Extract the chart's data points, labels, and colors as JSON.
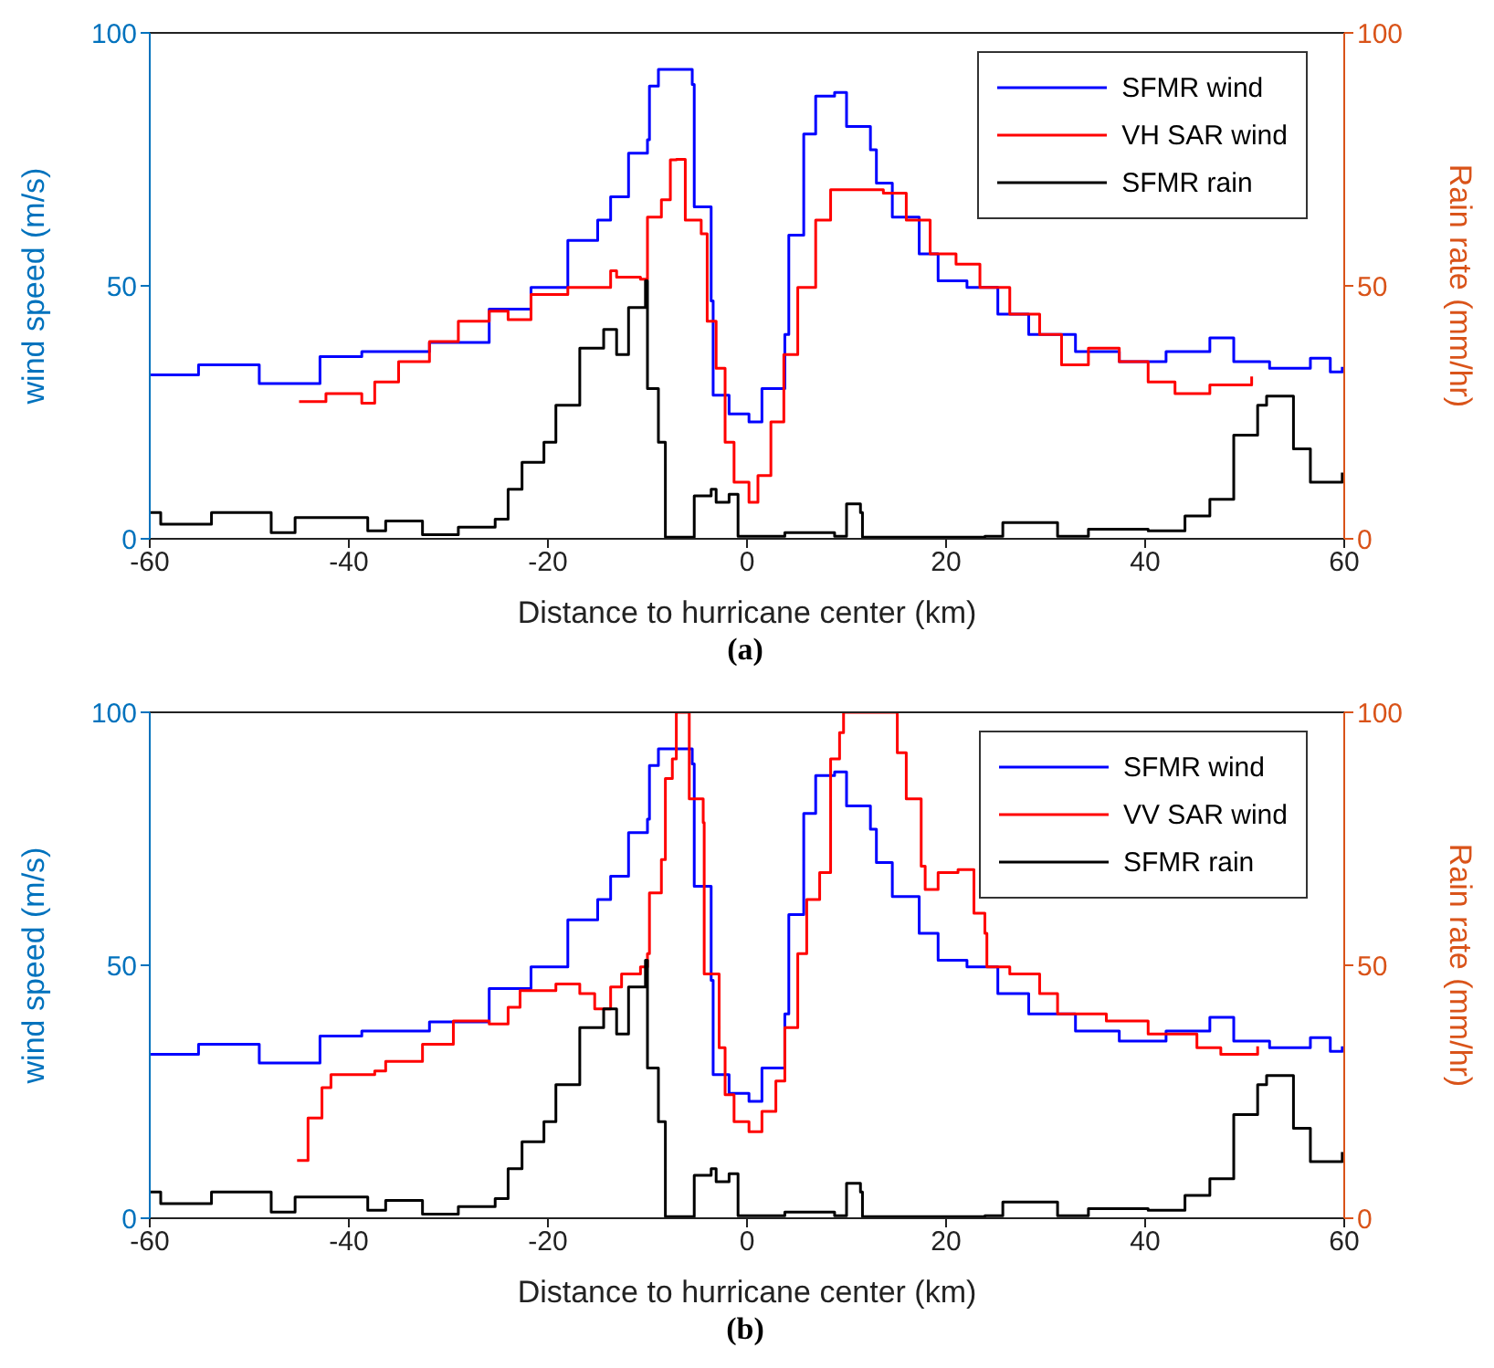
{
  "chart_data": [
    {
      "type": "step",
      "xlabel": "Distance to hurricane center (km)",
      "ylabel": "wind speed (m/s)",
      "y2label": "Rain rate (mm/hr)",
      "annotations": [
        "(a)"
      ],
      "xlim": [
        -60,
        60
      ],
      "xticks": [
        -60,
        -40,
        -20,
        0,
        20,
        40,
        60
      ],
      "ylim": [
        0,
        100
      ],
      "yticks": [
        0,
        50,
        100
      ],
      "y2lim": [
        0,
        100
      ],
      "y2ticks": [
        0,
        50,
        100
      ],
      "legend": "top right",
      "series": [
        {
          "name": "SFMR wind",
          "color": "#0000ff",
          "x": [
            -60,
            -55.1,
            -49,
            -42.9,
            -38.7,
            -31.9,
            -25.9,
            -21.7,
            -18,
            -15,
            -13.7,
            -11.9,
            -10,
            -9.8,
            -8.9,
            -5.5,
            -5.3,
            -3.6,
            -3.4,
            -1.8,
            0.2,
            1.5,
            3.8,
            4.2,
            5.7,
            6.9,
            8.8,
            10,
            12.4,
            13,
            14.6,
            17.3,
            19.2,
            22.1,
            25.2,
            28.3,
            33,
            37.4,
            42.1,
            46.5,
            48.9,
            52.5,
            56.6,
            58.6,
            59.8
          ],
          "values": [
            32.4,
            34.4,
            30.7,
            36,
            37,
            38.8,
            45.4,
            49.7,
            59,
            63,
            67.6,
            76.2,
            78.9,
            89.5,
            92.8,
            89.8,
            65.6,
            47,
            28.4,
            24.7,
            23.1,
            29.7,
            40.4,
            60,
            80,
            87.5,
            88.2,
            81.5,
            76.9,
            70.3,
            63.6,
            56.3,
            51,
            49.7,
            44.4,
            40.4,
            37,
            35,
            37,
            39.7,
            35,
            33.7,
            35.7,
            33,
            34
          ]
        },
        {
          "name": "VH SAR wind",
          "color": "#ff0000",
          "x": [
            -45,
            -42.3,
            -38.7,
            -37.4,
            -35,
            -31.9,
            -29,
            -25.9,
            -24,
            -21.7,
            -18,
            -13.7,
            -13.1,
            -10.7,
            -10,
            -8.6,
            -7.7,
            -7.1,
            -6.2,
            -4.6,
            -4,
            -3.1,
            -2.2,
            -1.3,
            0.2,
            1.1,
            2.4,
            3.7,
            5.1,
            6.9,
            8.4,
            13.7,
            16,
            18.4,
            21,
            23.4,
            26.4,
            29.4,
            31.6,
            34.3,
            37.4,
            40.3,
            43,
            46.5,
            50.7
          ],
          "values": [
            27.1,
            28.7,
            26.8,
            31,
            35,
            39,
            43,
            45,
            43.3,
            48.3,
            49.7,
            53,
            51.7,
            51.3,
            63.6,
            67,
            74.9,
            75,
            63,
            60.3,
            43,
            33.7,
            19.1,
            11.2,
            7.2,
            12.5,
            23.1,
            36.4,
            49.7,
            63,
            69,
            68.3,
            63,
            56.3,
            54.3,
            49.7,
            44.4,
            40.4,
            34.4,
            37.7,
            35,
            31,
            28.7,
            30.4,
            32.1
          ]
        },
        {
          "name": "SFMR rain",
          "color": "#000000",
          "x": [
            -60,
            -58.9,
            -53.8,
            -47.8,
            -45.4,
            -40.5,
            -38.1,
            -36.3,
            -32.6,
            -29,
            -25.3,
            -24,
            -22.6,
            -20.4,
            -19.2,
            -16.8,
            -14.4,
            -13.1,
            -11.9,
            -10.2,
            -10,
            -8.9,
            -8.2,
            -5.5,
            -5.3,
            -3.6,
            -3.1,
            -1.8,
            -0.9,
            3.8,
            8.8,
            10,
            11.4,
            11.6,
            23.9,
            25.7,
            31.2,
            34.3,
            40.3,
            44,
            46.5,
            48.9,
            51.3,
            52.2,
            54.9,
            56.6,
            59.8
          ],
          "values": [
            5.2,
            2.9,
            5.2,
            1.2,
            4.2,
            4.2,
            1.6,
            3.5,
            0.8,
            2.3,
            3.9,
            9.8,
            15.1,
            19.1,
            26.4,
            37.7,
            41.4,
            36.4,
            45.7,
            51,
            29.7,
            19.1,
            0.3,
            0.3,
            8.5,
            9.8,
            7.2,
            8.8,
            0.5,
            1.2,
            0.5,
            6.9,
            5.2,
            0.3,
            0.5,
            3.2,
            0.5,
            1.9,
            1.6,
            4.5,
            7.8,
            20.5,
            26.4,
            28.2,
            17.8,
            11.2,
            13.1
          ]
        }
      ]
    },
    {
      "type": "step",
      "xlabel": "Distance to hurricane center (km)",
      "ylabel": "wind speed (m/s)",
      "y2label": "Rain rate (mm/hr)",
      "annotations": [
        "(b)"
      ],
      "xlim": [
        -60,
        60
      ],
      "xticks": [
        -60,
        -40,
        -20,
        0,
        20,
        40,
        60
      ],
      "ylim": [
        0,
        100
      ],
      "yticks": [
        0,
        50,
        100
      ],
      "y2lim": [
        0,
        100
      ],
      "y2ticks": [
        0,
        50,
        100
      ],
      "legend": "top right",
      "series": [
        {
          "name": "SFMR wind",
          "color": "#0000ff",
          "x": [
            -60,
            -55.1,
            -49,
            -42.9,
            -38.7,
            -31.9,
            -25.9,
            -21.7,
            -18,
            -15,
            -13.7,
            -11.9,
            -10,
            -9.8,
            -8.9,
            -5.5,
            -5.3,
            -3.6,
            -3.4,
            -1.8,
            0.2,
            1.5,
            3.8,
            4.2,
            5.7,
            6.9,
            8.8,
            10,
            12.4,
            13,
            14.6,
            17.3,
            19.2,
            22.1,
            25.2,
            28.3,
            33,
            37.4,
            42.1,
            46.5,
            48.9,
            52.5,
            56.6,
            58.6,
            59.8
          ],
          "values": [
            32.4,
            34.4,
            30.7,
            36,
            37,
            38.8,
            45.4,
            49.7,
            59,
            63,
            67.6,
            76.2,
            78.9,
            89.5,
            92.8,
            89.8,
            65.6,
            47,
            28.4,
            24.7,
            23.1,
            29.7,
            40.4,
            60,
            80,
            87.5,
            88.2,
            81.5,
            76.9,
            70.3,
            63.6,
            56.3,
            51,
            49.7,
            44.4,
            40.4,
            37,
            35,
            37,
            39.7,
            35,
            33.7,
            35.7,
            33,
            34
          ]
        },
        {
          "name": "VV SAR wind",
          "color": "#ff0000",
          "x": [
            -45.2,
            -44.1,
            -42.7,
            -41.8,
            -37.4,
            -36.3,
            -32.6,
            -29.5,
            -25.9,
            -24,
            -22.8,
            -19.2,
            -16.8,
            -15.3,
            -13.7,
            -12.6,
            -10.7,
            -10,
            -9.8,
            -8.6,
            -8.2,
            -7.5,
            -7.1,
            -6.2,
            -5.8,
            -4.4,
            -4.3,
            -2.8,
            -2.2,
            -1.3,
            0.2,
            1.5,
            2.9,
            3.8,
            5.1,
            6,
            7.3,
            8.4,
            9.3,
            9.7,
            14.2,
            15.1,
            16,
            17.5,
            17.9,
            19.2,
            21.2,
            22.8,
            23.9,
            24.1,
            26.4,
            29.4,
            31.2,
            36.1,
            40.3,
            45.2,
            47.6,
            51.3
          ],
          "values": [
            11.4,
            19.8,
            25.8,
            28.4,
            29.1,
            31,
            34.4,
            39,
            38.4,
            41.7,
            45,
            46.3,
            44.4,
            41.4,
            45.7,
            48.3,
            49.7,
            52.3,
            64.3,
            70.9,
            86.9,
            90.8,
            100,
            100,
            82.9,
            78.2,
            48.3,
            33.7,
            24.4,
            19.1,
            17.1,
            21.1,
            27.1,
            37.7,
            52.3,
            63,
            68.3,
            90.8,
            96,
            100,
            100,
            92,
            82.9,
            69.6,
            65,
            68.3,
            68.9,
            60.3,
            56.3,
            49.7,
            48.3,
            44.4,
            40.4,
            39,
            36.4,
            33.7,
            32.4,
            34
          ]
        },
        {
          "name": "SFMR rain",
          "color": "#000000",
          "x": [
            -60,
            -58.9,
            -53.8,
            -47.8,
            -45.4,
            -40.5,
            -38.1,
            -36.3,
            -32.6,
            -29,
            -25.3,
            -24,
            -22.6,
            -20.4,
            -19.2,
            -16.8,
            -14.4,
            -13.1,
            -11.9,
            -10.2,
            -10,
            -8.9,
            -8.2,
            -5.5,
            -5.3,
            -3.6,
            -3.1,
            -1.8,
            -0.9,
            3.8,
            8.8,
            10,
            11.4,
            11.6,
            23.9,
            25.7,
            31.2,
            34.3,
            40.3,
            44,
            46.5,
            48.9,
            51.3,
            52.2,
            54.9,
            56.6,
            59.8
          ],
          "values": [
            5.2,
            2.9,
            5.2,
            1.2,
            4.2,
            4.2,
            1.6,
            3.5,
            0.8,
            2.3,
            3.9,
            9.8,
            15.1,
            19.1,
            26.4,
            37.7,
            41.4,
            36.4,
            45.7,
            51,
            29.7,
            19.1,
            0.3,
            0.3,
            8.5,
            9.8,
            7.2,
            8.8,
            0.5,
            1.2,
            0.5,
            6.9,
            5.2,
            0.3,
            0.5,
            3.2,
            0.5,
            1.9,
            1.6,
            4.5,
            7.8,
            20.5,
            26.4,
            28.2,
            17.8,
            11.2,
            13.1
          ]
        }
      ]
    }
  ]
}
